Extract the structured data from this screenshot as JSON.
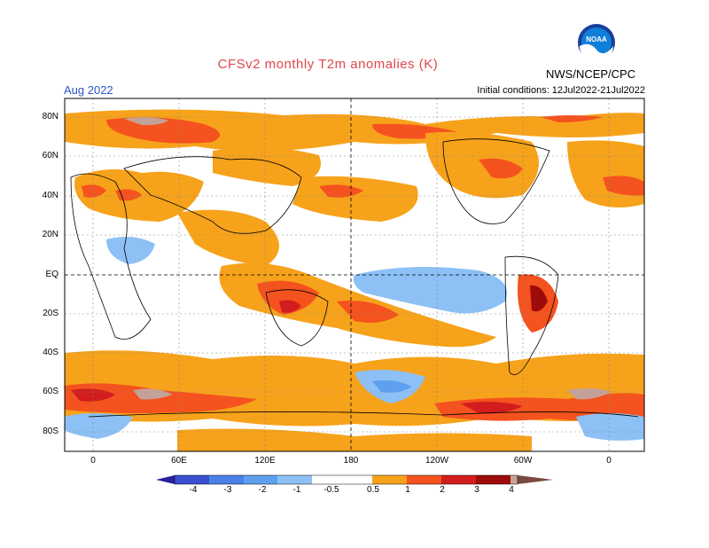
{
  "title": "CFSv2 monthly T2m anomalies (K)",
  "month": "Aug 2022",
  "initial_conditions": "Initial conditions: 12Jul2022-21Jul2022",
  "agency": "NWS/NCEP/CPC",
  "logo_text": "NOAA",
  "lat_labels": [
    "80N",
    "60N",
    "40N",
    "20N",
    "EQ",
    "20S",
    "40S",
    "60S",
    "80S"
  ],
  "lon_labels": [
    "0",
    "60E",
    "120E",
    "180",
    "120W",
    "60W",
    "0"
  ],
  "colorbar": {
    "labels": [
      "-4",
      "-3",
      "-2",
      "-1",
      "-0.5",
      "0.5",
      "1",
      "2",
      "3",
      "4"
    ],
    "colors": [
      "#2b1fa0",
      "#3a4fd0",
      "#4b7fe8",
      "#5ea0ef",
      "#8dc0f5",
      "#ffffff",
      "#f7a21b",
      "#f4521e",
      "#d11d1d",
      "#9e0b0b",
      "#c5a299",
      "#7a4a3e"
    ]
  }
}
